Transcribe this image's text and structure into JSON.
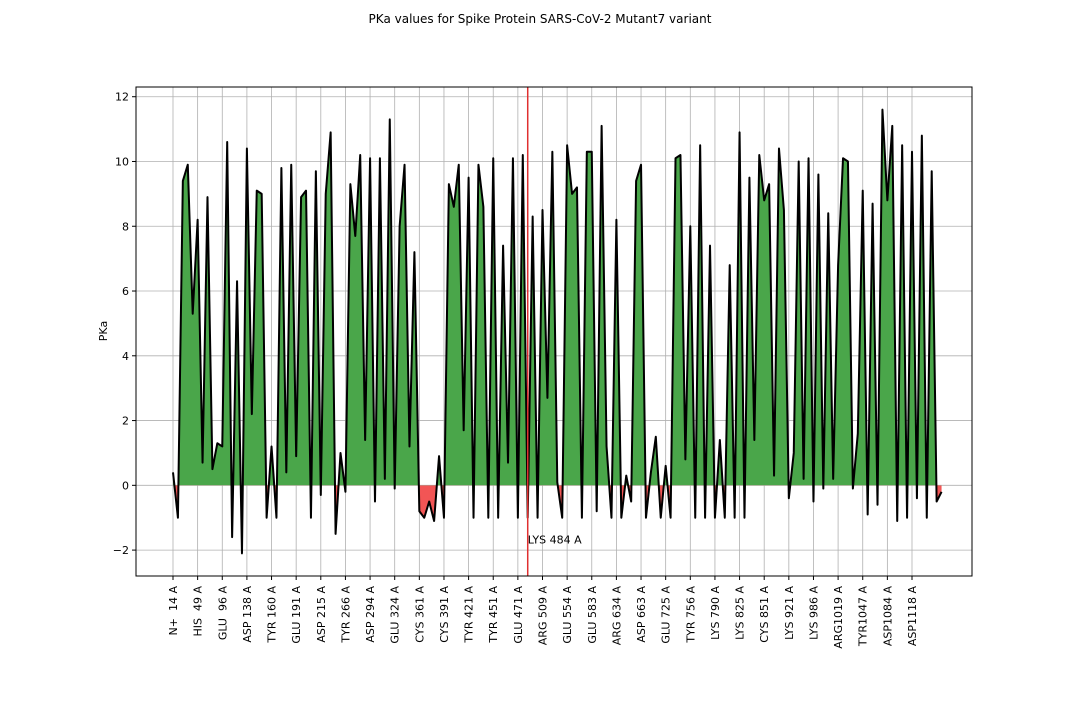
{
  "chart_data": {
    "type": "area-line",
    "title": "PKa values for Spike Protein SARS-CoV-2 Mutant7 variant",
    "ylabel": "PKa",
    "categories": [
      "N+  14 A",
      null,
      null,
      null,
      null,
      "HIS  49 A",
      null,
      null,
      null,
      null,
      "GLU  96 A",
      null,
      null,
      null,
      null,
      "ASP 138 A",
      null,
      null,
      null,
      null,
      "TYR 160 A",
      null,
      null,
      null,
      null,
      "GLU 191 A",
      null,
      null,
      null,
      null,
      "ASP 215 A",
      null,
      null,
      null,
      null,
      "TYR 266 A",
      null,
      null,
      null,
      null,
      "ASP 294 A",
      null,
      null,
      null,
      null,
      "GLU 324 A",
      null,
      null,
      null,
      null,
      "CYS 361 A",
      null,
      null,
      null,
      null,
      "CYS 391 A",
      null,
      null,
      null,
      null,
      "TYR 421 A",
      null,
      null,
      null,
      null,
      "TYR 451 A",
      null,
      null,
      null,
      null,
      "GLU 471 A",
      null,
      null,
      null,
      null,
      "ARG 509 A",
      null,
      null,
      null,
      null,
      "GLU 554 A",
      null,
      null,
      null,
      null,
      "GLU 583 A",
      null,
      null,
      null,
      null,
      "ARG 634 A",
      null,
      null,
      null,
      null,
      "ASP 663 A",
      null,
      null,
      null,
      null,
      "GLU 725 A",
      null,
      null,
      null,
      null,
      "TYR 756 A",
      null,
      null,
      null,
      null,
      "LYS 790 A",
      null,
      null,
      null,
      null,
      "LYS 825 A",
      null,
      null,
      null,
      null,
      "CYS 851 A",
      null,
      null,
      null,
      null,
      "LYS 921 A",
      null,
      null,
      null,
      null,
      "LYS 986 A",
      null,
      null,
      null,
      null,
      "ARG1019 A",
      null,
      null,
      null,
      null,
      "TYR1047 A",
      null,
      null,
      null,
      null,
      "ASP1084 A",
      null,
      null,
      null,
      null,
      "ASP1118 A",
      null,
      null,
      null,
      null,
      null,
      null
    ],
    "values": [
      0.4,
      -1.0,
      9.4,
      9.9,
      5.3,
      8.2,
      0.7,
      8.9,
      0.5,
      1.3,
      1.2,
      10.6,
      -1.6,
      6.3,
      -2.1,
      10.4,
      2.2,
      9.1,
      9.0,
      -1.0,
      1.2,
      -1.0,
      9.8,
      0.4,
      9.9,
      0.9,
      8.9,
      9.1,
      -1.0,
      9.7,
      -0.3,
      9.0,
      10.9,
      -1.5,
      1.0,
      -0.2,
      9.3,
      7.7,
      10.2,
      1.4,
      10.1,
      -0.5,
      10.1,
      0.2,
      11.3,
      -0.1,
      8.0,
      9.9,
      1.2,
      7.2,
      -0.8,
      -1.0,
      -0.5,
      -1.1,
      0.9,
      -1.0,
      9.3,
      8.6,
      9.9,
      1.7,
      9.5,
      -1.0,
      9.9,
      8.6,
      -1.0,
      10.1,
      -1.0,
      7.4,
      0.7,
      10.1,
      -1.0,
      10.2,
      -1.0,
      8.3,
      -1.0,
      8.5,
      2.7,
      10.3,
      0.1,
      -1.0,
      10.5,
      9.0,
      9.2,
      -1.0,
      10.3,
      10.3,
      -0.8,
      11.1,
      1.2,
      -1.0,
      8.2,
      -1.0,
      0.3,
      -0.5,
      9.4,
      9.9,
      -1.0,
      0.4,
      1.5,
      -1.0,
      0.6,
      -1.0,
      10.1,
      10.2,
      0.8,
      8.0,
      -1.0,
      10.5,
      -1.0,
      7.4,
      -1.0,
      1.4,
      -1.0,
      6.8,
      -1.0,
      10.9,
      -1.0,
      9.5,
      1.4,
      10.2,
      8.8,
      9.3,
      0.3,
      10.4,
      8.5,
      -0.4,
      1.0,
      10.0,
      0.2,
      10.1,
      -0.5,
      9.6,
      -0.1,
      8.4,
      0.2,
      6.8,
      10.1,
      10.0,
      -0.1,
      1.6,
      9.1,
      -0.9,
      8.7,
      -0.6,
      11.6,
      8.8,
      11.1,
      -1.1,
      10.5,
      -1.0,
      10.3,
      -0.4,
      10.8,
      -1.0,
      9.7,
      -0.5,
      -0.2
    ],
    "line_color": "#000000",
    "positive_color": "#4aa64a",
    "negative_color": "#f25555",
    "ylim": [
      -2.8,
      12.3
    ],
    "yticks": [
      {
        "value": -2,
        "label": "−2"
      },
      0,
      2,
      4,
      6,
      8,
      10,
      12
    ],
    "grid": true,
    "annotations": [
      {
        "text": "LYS 484 A",
        "x": 72,
        "y": -1.8,
        "color": "#e03030"
      }
    ]
  }
}
